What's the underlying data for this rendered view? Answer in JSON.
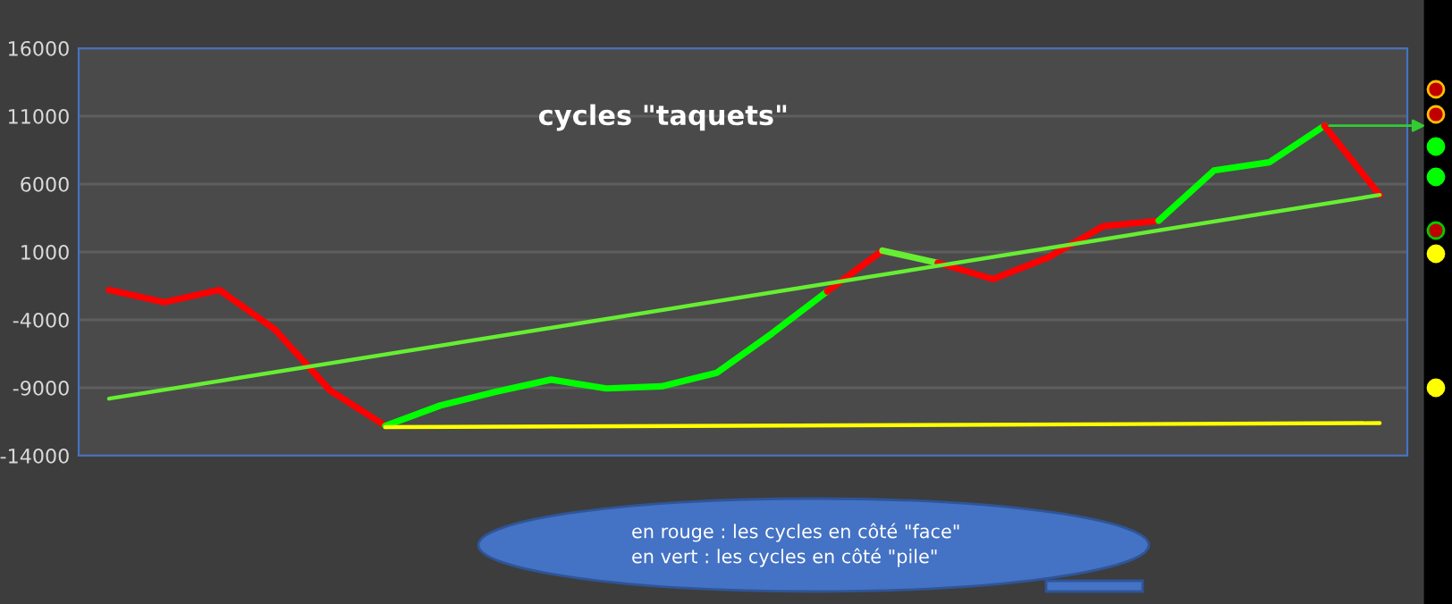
{
  "chart_data": {
    "type": "line",
    "title": "cycles \"taquets\"",
    "categories": [
      null,
      null,
      null,
      null,
      null,
      null,
      null,
      null,
      null,
      null,
      null,
      null,
      null,
      null,
      null,
      null,
      null,
      null,
      null,
      null,
      null,
      null,
      null,
      null
    ],
    "series": [
      {
        "color": "#ff0000",
        "values": [
          -1800,
          -2700,
          -1800,
          -4700,
          -9200,
          -11800,
          null,
          null,
          null,
          null,
          null,
          null,
          null,
          null,
          null,
          null,
          null,
          null,
          null,
          null,
          null,
          null,
          null,
          null
        ]
      },
      {
        "color": "#00ff00",
        "values": [
          null,
          null,
          null,
          null,
          null,
          -11800,
          -10300,
          -9300,
          -8400,
          -9050,
          -8900,
          -7900,
          -5000,
          -1900,
          null,
          null,
          null,
          null,
          null,
          null,
          null,
          null,
          null,
          null
        ]
      },
      {
        "color": "#ff0000",
        "values": [
          null,
          null,
          null,
          null,
          null,
          null,
          null,
          null,
          null,
          null,
          null,
          null,
          null,
          -1900,
          1100,
          null,
          null,
          null,
          null,
          null,
          null,
          null,
          null,
          null
        ]
      },
      {
        "color": "#66ee33",
        "values": [
          null,
          null,
          null,
          null,
          null,
          null,
          null,
          null,
          null,
          null,
          null,
          null,
          null,
          null,
          1100,
          200,
          null,
          null,
          null,
          null,
          null,
          null,
          null,
          null
        ]
      },
      {
        "color": "#ff0000",
        "values": [
          null,
          null,
          null,
          null,
          null,
          null,
          null,
          null,
          null,
          null,
          null,
          null,
          null,
          null,
          null,
          200,
          -1000,
          600,
          2900,
          3300,
          null,
          null,
          null,
          null
        ]
      },
      {
        "color": "#00ff00",
        "values": [
          null,
          null,
          null,
          null,
          null,
          null,
          null,
          null,
          null,
          null,
          null,
          null,
          null,
          null,
          null,
          null,
          null,
          null,
          null,
          3300,
          7000,
          7600,
          10300,
          null
        ]
      },
      {
        "color": "#ff0000",
        "values": [
          null,
          null,
          null,
          null,
          null,
          null,
          null,
          null,
          null,
          null,
          null,
          null,
          null,
          null,
          null,
          null,
          null,
          null,
          null,
          null,
          null,
          null,
          10300,
          5200
        ]
      },
      {
        "color": "#66ee33",
        "values": [
          -9800,
          null,
          null,
          null,
          null,
          null,
          null,
          null,
          null,
          null,
          null,
          null,
          null,
          null,
          null,
          null,
          null,
          null,
          null,
          null,
          null,
          null,
          null,
          5200
        ]
      },
      {
        "color": "#ffff00",
        "values": [
          null,
          null,
          null,
          null,
          null,
          -11900,
          null,
          null,
          null,
          null,
          null,
          null,
          null,
          null,
          null,
          null,
          null,
          null,
          null,
          null,
          null,
          null,
          null,
          -11600
        ]
      }
    ],
    "ylim": [
      -14000,
      16000
    ],
    "yticks": [
      16000,
      11000,
      6000,
      1000,
      -4000,
      -9000,
      -14000
    ],
    "grid": "y",
    "tick_labels": "y",
    "marker": "none",
    "line_style": "solid",
    "legend": false,
    "annotations": [
      "en rouge : les cycles en côté \"face\"",
      "en vert : les cycles en côté \"pile\""
    ]
  }
}
